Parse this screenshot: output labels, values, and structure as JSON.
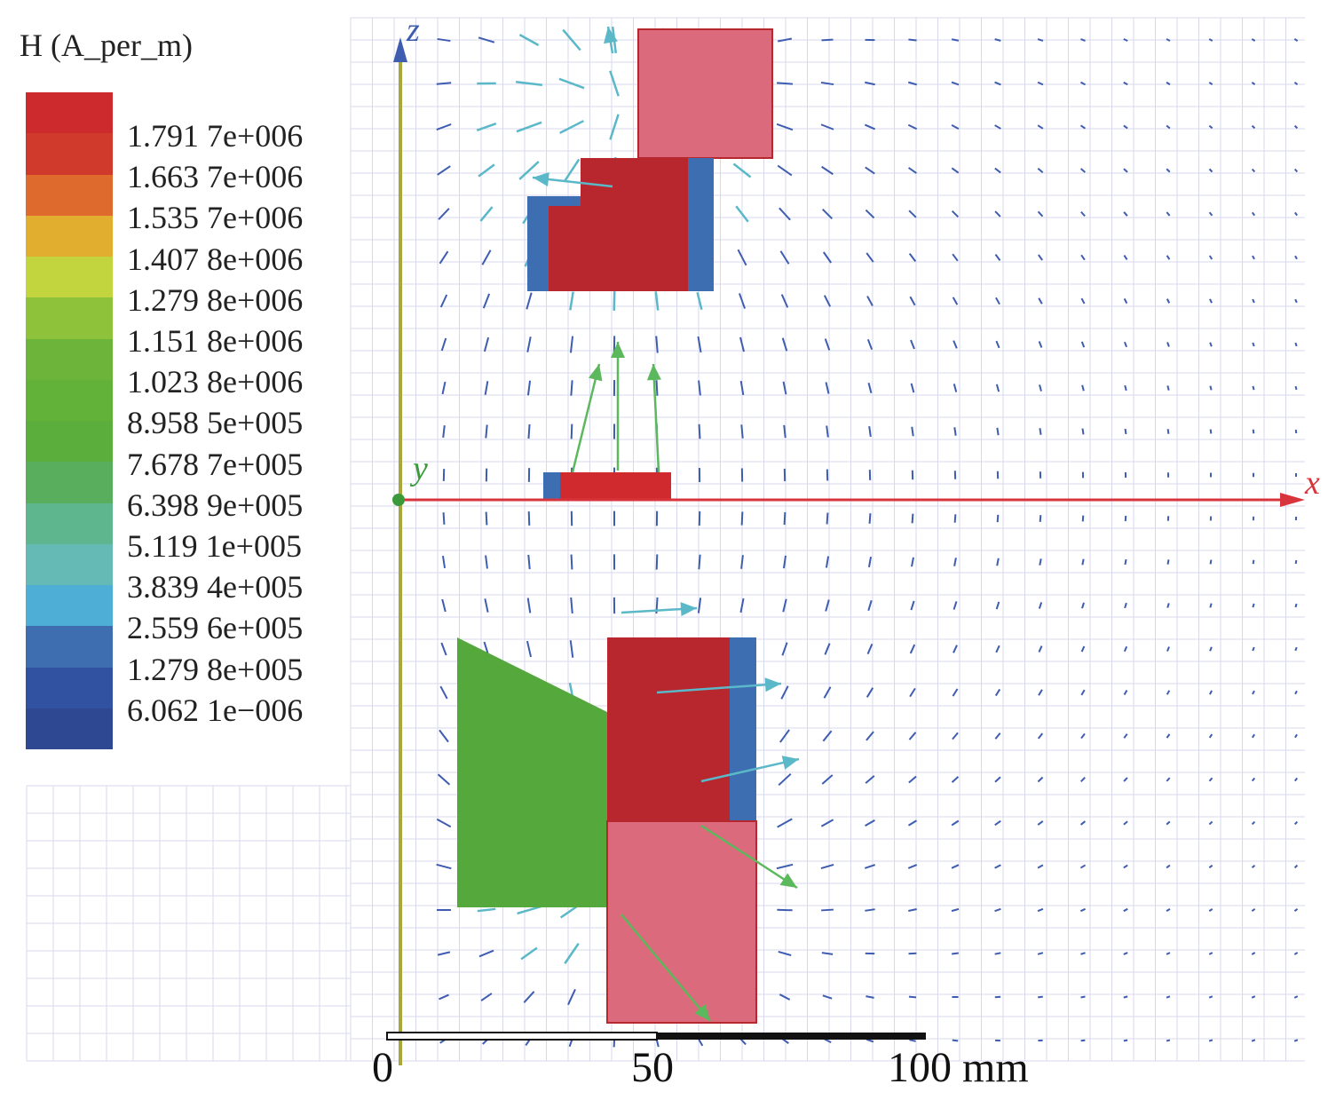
{
  "legend": {
    "title": "H (A_per_m)",
    "labels": [
      "1.791 7e+006",
      "1.663 7e+006",
      "1.535 7e+006",
      "1.407 8e+006",
      "1.279 8e+006",
      "1.151 8e+006",
      "1.023 8e+006",
      "8.958 5e+005",
      "7.678 7e+005",
      "6.398 9e+005",
      "5.119 1e+005",
      "3.839 4e+005",
      "2.559 6e+005",
      "1.279 8e+005",
      "6.062 1e−006"
    ],
    "colors": [
      "#cc2a2c",
      "#d03a2c",
      "#df6a2e",
      "#e2ae30",
      "#c2d43e",
      "#8ec23a",
      "#6cb43a",
      "#62b23a",
      "#5cae3c",
      "#58ae5c",
      "#5eb68e",
      "#66bab6",
      "#4eaed6",
      "#3e6eb0",
      "#3052a0",
      "#2e4892"
    ]
  },
  "axes": {
    "z": "z",
    "y": "y",
    "x": "x"
  },
  "scale_bar": {
    "labels": [
      "0",
      "50",
      "100 mm"
    ]
  },
  "colors": {
    "magnet_red": "#b8262e",
    "magnet_pink": "#da6a7c",
    "blue": "#3e6eb2",
    "iron_green": "#54a83c",
    "x_axis": "#d8343c",
    "z_axis": "#a8a83a"
  }
}
